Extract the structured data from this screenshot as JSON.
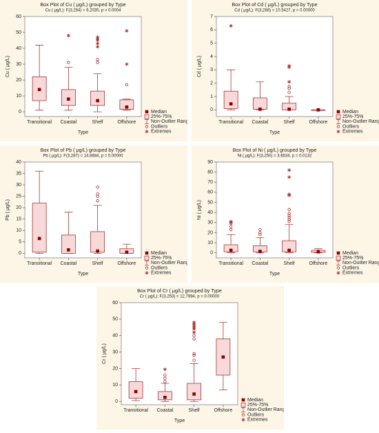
{
  "chart_data": [
    {
      "type": "box",
      "title": "Box Plot of Cu ( μg/L) grouped by  Type",
      "subtitle": "Cu ( μg/L):   F(3,294) = 6.2035, p = 0.0004",
      "x_label": "Type",
      "y_label": "Cu ( μg/L)",
      "categories": [
        "Transitional",
        "Coastal",
        "Shelf",
        "Offshore"
      ],
      "ylim": [
        -3,
        60
      ],
      "yticks": [
        0,
        10,
        20,
        30,
        40,
        50,
        60
      ],
      "color": "#a83232",
      "fill": "#f7d9d9",
      "legend": [
        "Median",
        "25%-75%",
        "Non-Outlier Range",
        "Outliers",
        "Extremes"
      ],
      "boxes": [
        {
          "median": 14,
          "q1": 7,
          "q3": 22,
          "whisker_low": 1,
          "whisker_high": 42,
          "outliers": [],
          "extremes": []
        },
        {
          "median": 8,
          "q1": 4,
          "q3": 14,
          "whisker_low": 1,
          "whisker_high": 28,
          "outliers": [
            31
          ],
          "extremes": [
            48
          ]
        },
        {
          "median": 7,
          "q1": 4,
          "q3": 13,
          "whisker_low": 0,
          "whisker_high": 24,
          "outliers": [
            31,
            33
          ],
          "extremes": [
            41,
            43,
            45,
            46,
            47
          ]
        },
        {
          "median": 3,
          "q1": 1.5,
          "q3": 7.5,
          "whisker_low": 1,
          "whisker_high": 8,
          "outliers": [
            17
          ],
          "extremes": [
            30,
            51
          ]
        }
      ]
    },
    {
      "type": "box",
      "title": "Box Plot of Cd ( μg/L) grouped by  Type",
      "subtitle": "Cd ( μg/L):   F(3,288) = 10.5427, p = 0.00000",
      "x_label": "Type",
      "y_label": "Cd ( μg/L)",
      "categories": [
        "Transitional",
        "Coastal",
        "Shelf",
        "Offshore"
      ],
      "ylim": [
        -0.5,
        7
      ],
      "yticks": [
        0,
        1,
        2,
        3,
        4,
        5,
        6,
        7
      ],
      "color": "#a83232",
      "fill": "#f7d9d9",
      "legend": [
        "Median",
        "25%-75%",
        "Non-Outlier Range",
        "Outliers",
        "Extremes"
      ],
      "boxes": [
        {
          "median": 0.45,
          "q1": 0.1,
          "q3": 1.4,
          "whisker_low": 0,
          "whisker_high": 3,
          "outliers": [],
          "extremes": [
            6.3
          ]
        },
        {
          "median": 0.05,
          "q1": 0.05,
          "q3": 0.9,
          "whisker_low": 0,
          "whisker_high": 2.1,
          "outliers": [],
          "extremes": []
        },
        {
          "median": 0.05,
          "q1": 0,
          "q3": 0.5,
          "whisker_low": 0,
          "whisker_high": 1,
          "outliers": [
            1.3,
            1.6,
            1.75
          ],
          "extremes": [
            2.1,
            3.2,
            3.3
          ]
        },
        {
          "median": 0,
          "q1": 0,
          "q3": 0,
          "whisker_low": 0,
          "whisker_high": 0,
          "outliers": [],
          "extremes": []
        }
      ]
    },
    {
      "type": "box",
      "title": "Box Plot of Pb ( μg/L) grouped by  Type",
      "subtitle": "Pb ( μg/L):   F(3,287) = 14.8884, p = 0.00000",
      "x_label": "Type",
      "y_label": "Pb ( μg/L)",
      "categories": [
        "Transitional",
        "Coastal",
        "Shelf",
        "Offshore"
      ],
      "ylim": [
        -2,
        40
      ],
      "yticks": [
        0,
        5,
        10,
        15,
        20,
        25,
        30,
        35,
        40
      ],
      "color": "#a83232",
      "fill": "#f7d9d9",
      "legend": [
        "Median",
        "25%-75%",
        "Non-Outlier Range",
        "Outliers",
        "Extremes"
      ],
      "boxes": [
        {
          "median": 6.5,
          "q1": 0.5,
          "q3": 22,
          "whisker_low": 0,
          "whisker_high": 36,
          "outliers": [],
          "extremes": []
        },
        {
          "median": 1.5,
          "q1": 0,
          "q3": 8,
          "whisker_low": 0,
          "whisker_high": 18,
          "outliers": [],
          "extremes": []
        },
        {
          "median": 1,
          "q1": 0.5,
          "q3": 9.5,
          "whisker_low": 0,
          "whisker_high": 21,
          "outliers": [
            23,
            25,
            26,
            29
          ],
          "extremes": []
        },
        {
          "median": 0.5,
          "q1": 0,
          "q3": 2,
          "whisker_low": 0,
          "whisker_high": 4,
          "outliers": [],
          "extremes": []
        }
      ]
    },
    {
      "type": "box",
      "title": "Box Plot of Ni ( μg/L) grouped by  Type",
      "subtitle": "Ni ( μg/L):   F(3,250) = 3.6534, p = 0.0132",
      "x_label": "Type",
      "y_label": "Ni ( μg/L)",
      "categories": [
        "Transitional",
        "Coastal",
        "Shelf",
        "Offshore"
      ],
      "ylim": [
        -5,
        90
      ],
      "yticks": [
        0,
        10,
        20,
        30,
        40,
        50,
        60,
        70,
        80,
        90
      ],
      "color": "#a83232",
      "fill": "#f7d9d9",
      "legend": [
        "Median",
        "25%-75%",
        "Non-Outlier Range",
        "Outliers",
        "Extremes"
      ],
      "boxes": [
        {
          "median": 2.5,
          "q1": 1,
          "q3": 8,
          "whisker_low": 0,
          "whisker_high": 18,
          "outliers": [
            23,
            26,
            29
          ],
          "extremes": [
            30,
            31
          ]
        },
        {
          "median": 1.5,
          "q1": 1,
          "q3": 7,
          "whisker_low": 0,
          "whisker_high": 15,
          "outliers": [
            18,
            20,
            23
          ],
          "extremes": []
        },
        {
          "median": 2.5,
          "q1": 1,
          "q3": 12,
          "whisker_low": 0,
          "whisker_high": 28,
          "outliers": [
            31,
            33,
            35,
            37,
            39,
            43
          ],
          "extremes": [
            57,
            58,
            75,
            82
          ]
        },
        {
          "median": 1,
          "q1": 0.5,
          "q3": 2.5,
          "whisker_low": 0,
          "whisker_high": 4,
          "outliers": [],
          "extremes": []
        }
      ]
    },
    {
      "type": "box",
      "title": "Box Plot of Cr ( μg/L) grouped by  Type",
      "subtitle": "Cr ( μg/L):   F(3,253) = 12.7994, p = 0.00000",
      "x_label": "Type",
      "y_label": "Cr ( μg/L)",
      "categories": [
        "Transitional",
        "Coastal",
        "Shelf",
        "Offshore"
      ],
      "ylim": [
        -2,
        60
      ],
      "yticks": [
        0,
        10,
        20,
        30,
        40,
        50,
        60
      ],
      "color": "#a83232",
      "fill": "#f7d9d9",
      "legend": [
        "Median",
        "25%-75%",
        "Non-Outlier Range",
        "Outliers",
        "Extremes"
      ],
      "boxes": [
        {
          "median": 6,
          "q1": 2,
          "q3": 12,
          "whisker_low": 0.5,
          "whisker_high": 20,
          "outliers": [],
          "extremes": []
        },
        {
          "median": 2.5,
          "q1": 1,
          "q3": 6,
          "whisker_low": 0,
          "whisker_high": 11,
          "outliers": [
            12,
            14,
            16
          ],
          "extremes": [
            19.5
          ]
        },
        {
          "median": 4.5,
          "q1": 1,
          "q3": 11,
          "whisker_low": 0,
          "whisker_high": 23,
          "outliers": [
            25,
            28,
            29,
            38,
            40
          ],
          "extremes": [
            42,
            44,
            45,
            46,
            47,
            48
          ]
        },
        {
          "median": 27,
          "q1": 16,
          "q3": 38,
          "whisker_low": 7,
          "whisker_high": 48,
          "outliers": [],
          "extremes": []
        }
      ]
    }
  ]
}
